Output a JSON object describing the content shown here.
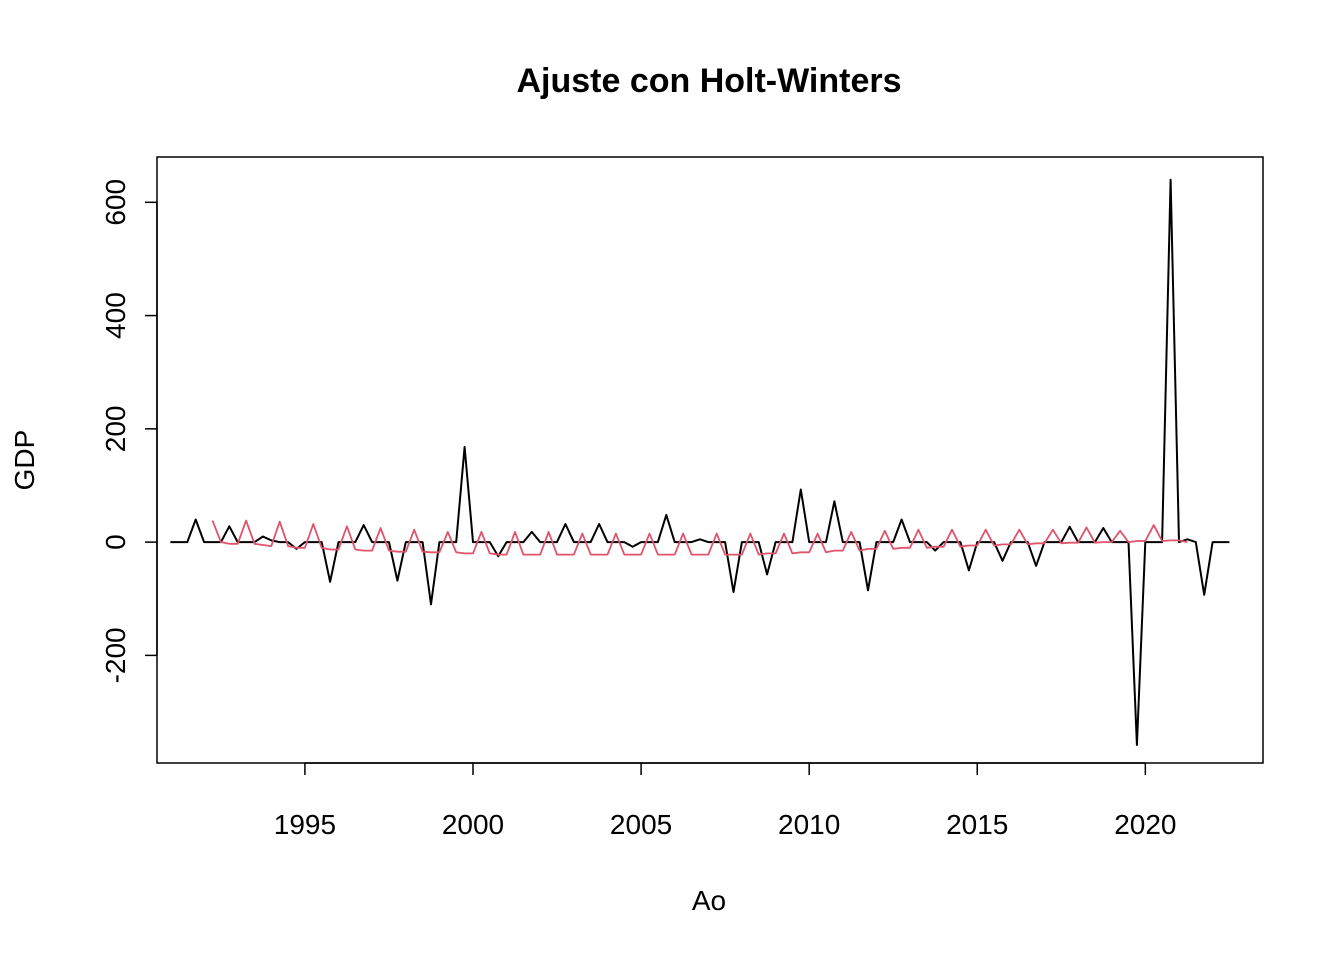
{
  "chart_data": {
    "type": "line",
    "title": "Ajuste con Holt-Winters",
    "xlabel": "Ao",
    "ylabel": "GDP",
    "xlim": [
      1990.6,
      2023.5
    ],
    "ylim": [
      -390,
      680
    ],
    "x_ticks": [
      1995,
      2000,
      2005,
      2010,
      2015,
      2020
    ],
    "y_ticks": [
      -200,
      0,
      200,
      400,
      600
    ],
    "grid": false,
    "legend": "none",
    "x_start": 1991.0,
    "x_step": 0.25,
    "series": [
      {
        "color": "#000000",
        "values": [
          0,
          0,
          0,
          40,
          0,
          0,
          0,
          28,
          0,
          0,
          0,
          10,
          3,
          0,
          0,
          -12,
          0,
          0,
          0,
          -70,
          0,
          0,
          0,
          30,
          0,
          0,
          0,
          -68,
          0,
          0,
          0,
          -110,
          0,
          0,
          0,
          168,
          0,
          0,
          0,
          -25,
          0,
          0,
          0,
          18,
          0,
          0,
          0,
          32,
          0,
          0,
          0,
          32,
          0,
          0,
          0,
          -8,
          0,
          0,
          0,
          48,
          0,
          0,
          0,
          5,
          0,
          0,
          0,
          -88,
          0,
          0,
          0,
          -57,
          0,
          0,
          0,
          93,
          0,
          0,
          0,
          72,
          0,
          0,
          0,
          -85,
          0,
          0,
          0,
          40,
          0,
          0,
          0,
          -15,
          0,
          0,
          0,
          -50,
          0,
          0,
          0,
          -33,
          0,
          0,
          0,
          -42,
          0,
          0,
          0,
          27,
          0,
          0,
          0,
          25,
          0,
          0,
          0,
          -358,
          0,
          0,
          0,
          640,
          0,
          5,
          0,
          -93,
          0,
          0,
          0
        ]
      },
      {
        "color": "#df536b",
        "values": [
          null,
          null,
          null,
          null,
          null,
          38,
          0,
          -3,
          -3,
          38,
          -3,
          -5,
          -7,
          36,
          -7,
          -10,
          -10,
          32,
          -10,
          -13,
          -13,
          28,
          -13,
          -15,
          -15,
          25,
          -15,
          -17,
          -17,
          22,
          -17,
          -18,
          -18,
          18,
          -18,
          -20,
          -20,
          18,
          -20,
          -22,
          -22,
          18,
          -22,
          -22,
          -22,
          18,
          -22,
          -22,
          -22,
          15,
          -22,
          -22,
          -22,
          15,
          -22,
          -22,
          -22,
          15,
          -22,
          -22,
          -22,
          15,
          -22,
          -22,
          -22,
          15,
          -22,
          -22,
          -22,
          15,
          -22,
          -20,
          -20,
          15,
          -20,
          -18,
          -18,
          15,
          -18,
          -15,
          -15,
          18,
          -15,
          -12,
          -12,
          20,
          -12,
          -10,
          -10,
          22,
          -10,
          -8,
          -8,
          22,
          -8,
          -6,
          -6,
          22,
          -6,
          -4,
          -4,
          22,
          -4,
          -2,
          -2,
          22,
          -2,
          -1,
          -1,
          26,
          -1,
          0,
          0,
          20,
          0,
          2,
          2,
          30,
          2,
          3,
          3,
          0
        ]
      }
    ]
  }
}
